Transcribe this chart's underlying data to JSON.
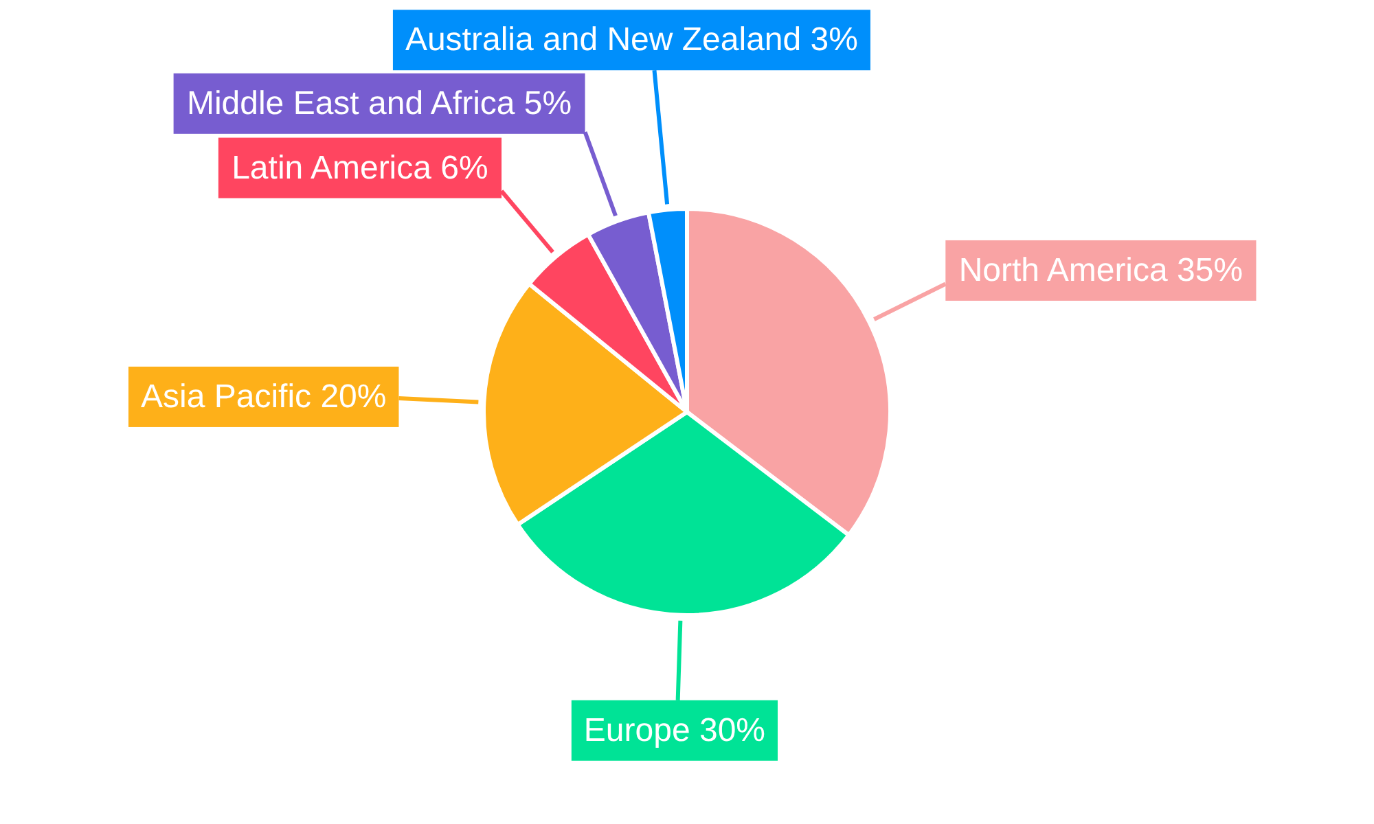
{
  "chart_data": {
    "type": "pie",
    "categories": [
      "North America",
      "Europe",
      "Asia Pacific",
      "Latin America",
      "Middle East and Africa",
      "Australia and New Zealand"
    ],
    "values": [
      35,
      30,
      20,
      6,
      5,
      3
    ],
    "value_labels": [
      "35%",
      "30%",
      "20%",
      "6%",
      "5%",
      "3%"
    ],
    "colors": [
      "#f9a3a4",
      "#00e396",
      "#feb019",
      "#ff4560",
      "#775dd0",
      "#008ffb"
    ]
  }
}
